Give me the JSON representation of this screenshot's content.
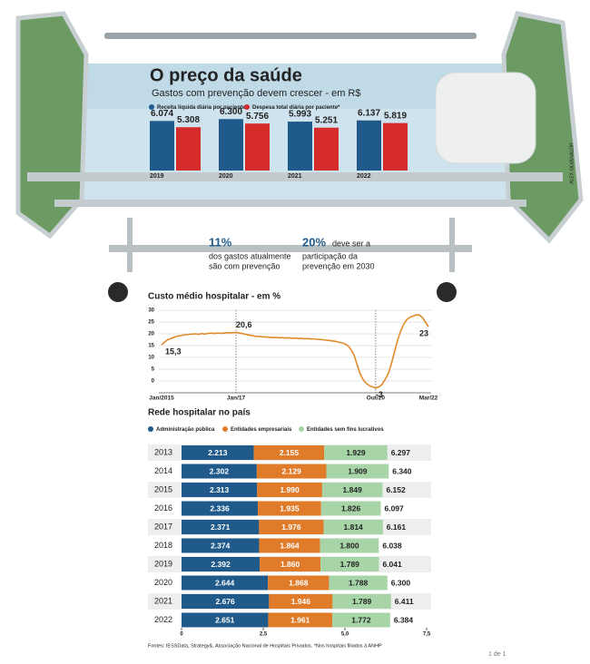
{
  "chart_data": [
    {
      "type": "bar",
      "title": "O preço da saúde",
      "subtitle": "Gastos com prevenção devem crescer - em R$",
      "categories": [
        "2019",
        "2020",
        "2021",
        "2022"
      ],
      "series": [
        {
          "name": "Receita líquida diária por paciente*",
          "color": "#1f5a8a",
          "values": [
            6074,
            6300,
            5993,
            6137
          ],
          "value_labels": [
            "6.074",
            "6.300",
            "5.993",
            "6.137"
          ]
        },
        {
          "name": "Despesa total diária por paciente*",
          "color": "#d62b2b",
          "values": [
            5308,
            5756,
            5251,
            5819
          ],
          "value_labels": [
            "5.308",
            "5.756",
            "5.251",
            "5.819"
          ]
        }
      ]
    },
    {
      "type": "line",
      "title": "Custo médio hospitalar - em %",
      "color": "#e08a2a",
      "categories": [
        "Jan/2015",
        null,
        null,
        null,
        null,
        null,
        null,
        null,
        null,
        null,
        null,
        null,
        null,
        null,
        null,
        null,
        null,
        null,
        null,
        null,
        null,
        null,
        null,
        null,
        "Jan/17",
        null,
        null,
        null,
        null,
        null,
        null,
        null,
        null,
        null,
        null,
        null,
        null,
        null,
        null,
        null,
        null,
        null,
        null,
        null,
        null,
        null,
        null,
        null,
        null,
        null,
        null,
        null,
        null,
        null,
        null,
        null,
        null,
        null,
        null,
        null,
        null,
        null,
        null,
        null,
        null,
        null,
        null,
        null,
        null,
        "Out/20",
        null,
        null,
        null,
        null,
        null,
        null,
        null,
        null,
        null,
        null,
        null,
        null,
        null,
        null,
        null,
        null,
        "Mar/22"
      ],
      "values": [
        15.3,
        16.5,
        17.5,
        18.0,
        18.5,
        19.0,
        19.2,
        19.5,
        19.6,
        19.8,
        19.9,
        20.0,
        19.8,
        20.1,
        19.9,
        20.2,
        20.3,
        20.1,
        20.4,
        20.2,
        20.3,
        20.5,
        20.4,
        20.5,
        20.6,
        20.3,
        20.1,
        19.8,
        19.5,
        19.3,
        19.0,
        18.9,
        18.8,
        18.7,
        18.6,
        18.5,
        18.4,
        18.5,
        18.3,
        18.4,
        18.2,
        18.3,
        18.1,
        18.2,
        18.0,
        18.1,
        17.9,
        18.0,
        17.8,
        17.9,
        17.7,
        17.6,
        17.5,
        17.3,
        17.2,
        17.0,
        16.8,
        16.5,
        16.2,
        15.8,
        15.0,
        13.5,
        11.0,
        7.0,
        3.0,
        0.5,
        -1.0,
        -2.0,
        -2.5,
        -3,
        -2.5,
        -1.5,
        0.5,
        3,
        7,
        12,
        17,
        21,
        24,
        26,
        27,
        27.5,
        28,
        28,
        27,
        25,
        23
      ],
      "value_labels": [
        "15,3",
        null,
        null,
        null,
        null,
        null,
        null,
        null,
        null,
        null,
        null,
        null,
        null,
        null,
        null,
        null,
        null,
        null,
        null,
        null,
        null,
        null,
        null,
        null,
        "20,6",
        null,
        null,
        null,
        null,
        null,
        null,
        null,
        null,
        null,
        null,
        null,
        null,
        null,
        null,
        null,
        null,
        null,
        null,
        null,
        null,
        null,
        null,
        null,
        null,
        null,
        null,
        null,
        null,
        null,
        null,
        null,
        null,
        null,
        null,
        null,
        null,
        null,
        null,
        null,
        null,
        null,
        null,
        null,
        null,
        "-3",
        null,
        null,
        null,
        null,
        null,
        null,
        null,
        null,
        null,
        null,
        null,
        null,
        null,
        null,
        null,
        null,
        "23"
      ],
      "ylim": [
        -5,
        30
      ],
      "yticks": [
        0,
        5,
        10,
        15,
        20,
        25,
        30
      ]
    },
    {
      "type": "bar",
      "stacked": true,
      "orientation": "horizontal",
      "title": "Rede hospitalar no país",
      "categories": [
        "2013",
        "2014",
        "2015",
        "2016",
        "2017",
        "2018",
        "2019",
        "2020",
        "2021",
        "2022"
      ],
      "series": [
        {
          "name": "Administração pública",
          "color": "#1f5a8a",
          "values": [
            2.213,
            2.302,
            2.313,
            2.336,
            2.371,
            2.374,
            2.392,
            2.644,
            2.676,
            2.651
          ],
          "value_labels": [
            "2.213",
            "2.302",
            "2.313",
            "2.336",
            "2.371",
            "2.374",
            "2.392",
            "2.644",
            "2.676",
            "2.651"
          ]
        },
        {
          "name": "Entidades empresariais",
          "color": "#e07b2a",
          "values": [
            2.155,
            2.129,
            1.99,
            1.935,
            1.976,
            1.864,
            1.86,
            1.868,
            1.946,
            1.961
          ],
          "value_labels": [
            "2.155",
            "2.129",
            "1.990",
            "1.935",
            "1.976",
            "1.864",
            "1.860",
            "1.868",
            "1.946",
            "1.961"
          ]
        },
        {
          "name": "Entidades sem fins lucrativos",
          "color": "#a8d5a8",
          "values": [
            1.929,
            1.909,
            1.849,
            1.826,
            1.814,
            1.8,
            1.789,
            1.788,
            1.789,
            1.772
          ],
          "value_labels": [
            "1.929",
            "1.909",
            "1.849",
            "1.826",
            "1.814",
            "1.800",
            "1.789",
            "1.788",
            "1.789",
            "1.772"
          ]
        }
      ],
      "totals": [
        6.297,
        6.34,
        6.152,
        6.097,
        6.161,
        6.038,
        6.041,
        6.3,
        6.411,
        6.384
      ],
      "total_labels": [
        "6.297",
        "6.340",
        "6.152",
        "6.097",
        "6.161",
        "6.038",
        "6.041",
        "6.300",
        "6.411",
        "6.384"
      ],
      "xlim": [
        0,
        7.5
      ],
      "xticks": [
        0,
        {
          "value": 2.5,
          "label": "2,5"
        },
        {
          "value": 5,
          "label": "5,0"
        },
        {
          "value": 7.5,
          "label": "7,5"
        }
      ]
    }
  ],
  "annotations": [
    {
      "value": "11%",
      "text": [
        "dos gastos atualmente",
        "são com prevenção"
      ]
    },
    {
      "value": "20%",
      "text": [
        "deve ser a",
        "participação da",
        "prevenção em 2030"
      ]
    }
  ],
  "credit": "ALEX SILVA/VALOR",
  "source": "Fontes: IESSData, Strategy&, Associação Nacional de Hospitais Privados. *Nos hospitais filiados à ANHP",
  "page": "1 de 1"
}
